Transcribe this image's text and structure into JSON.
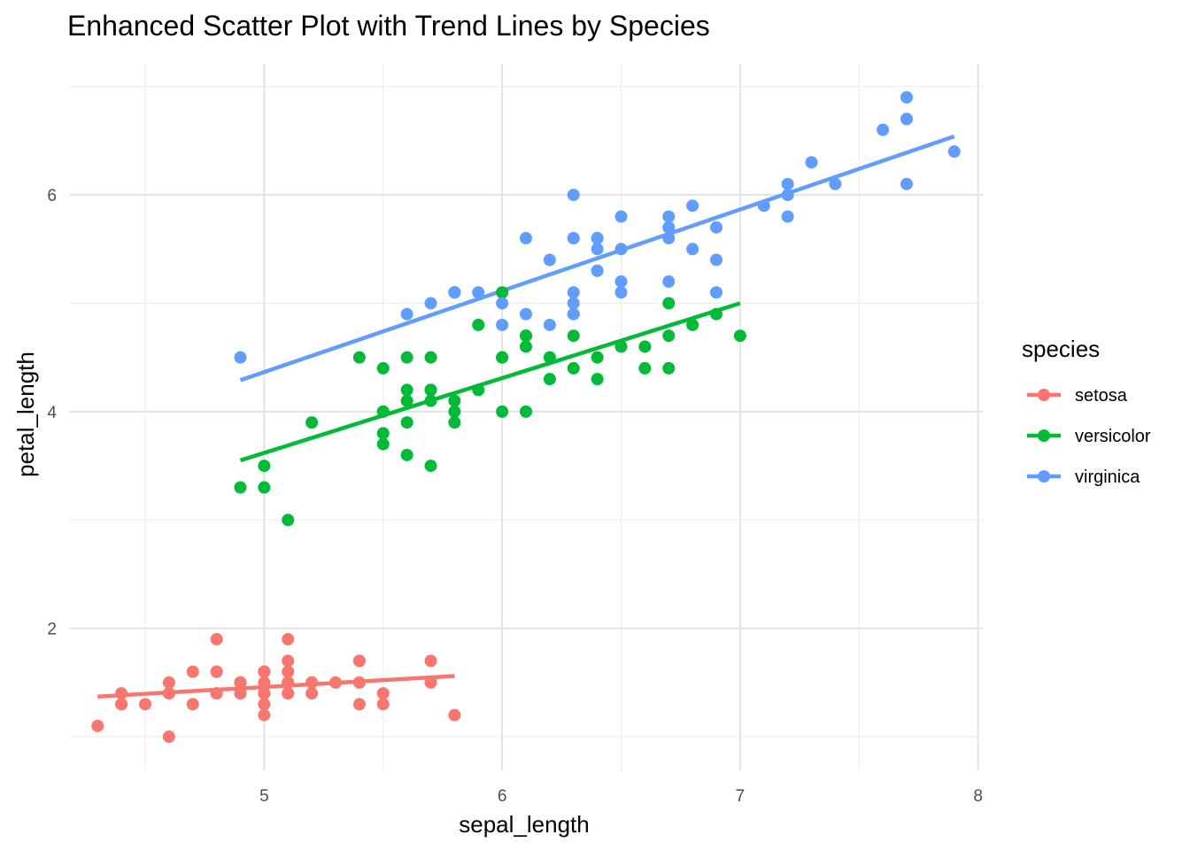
{
  "chart_data": {
    "type": "scatter",
    "title": "Enhanced Scatter Plot with Trend Lines by Species",
    "xlabel": "sepal_length",
    "ylabel": "petal_length",
    "xlim": [
      4.18,
      8.02
    ],
    "ylim": [
      0.69,
      7.21
    ],
    "x_ticks": [
      5,
      6,
      7,
      8
    ],
    "y_ticks": [
      2,
      4,
      6
    ],
    "grid": true,
    "legend": {
      "title": "species",
      "position": "right"
    },
    "series": [
      {
        "name": "setosa",
        "color": "#F8766D",
        "points": [
          [
            5.1,
            1.4
          ],
          [
            4.9,
            1.4
          ],
          [
            4.7,
            1.3
          ],
          [
            4.6,
            1.5
          ],
          [
            5.0,
            1.4
          ],
          [
            5.4,
            1.7
          ],
          [
            4.6,
            1.4
          ],
          [
            5.0,
            1.5
          ],
          [
            4.4,
            1.4
          ],
          [
            4.9,
            1.5
          ],
          [
            5.4,
            1.5
          ],
          [
            4.8,
            1.6
          ],
          [
            4.8,
            1.4
          ],
          [
            4.3,
            1.1
          ],
          [
            5.8,
            1.2
          ],
          [
            5.7,
            1.5
          ],
          [
            5.4,
            1.3
          ],
          [
            5.1,
            1.4
          ],
          [
            5.7,
            1.7
          ],
          [
            5.1,
            1.5
          ],
          [
            5.4,
            1.7
          ],
          [
            5.1,
            1.5
          ],
          [
            4.6,
            1.0
          ],
          [
            5.1,
            1.7
          ],
          [
            4.8,
            1.9
          ],
          [
            5.0,
            1.6
          ],
          [
            5.0,
            1.6
          ],
          [
            5.2,
            1.5
          ],
          [
            5.2,
            1.4
          ],
          [
            4.7,
            1.6
          ],
          [
            4.8,
            1.6
          ],
          [
            5.4,
            1.5
          ],
          [
            5.2,
            1.5
          ],
          [
            5.5,
            1.4
          ],
          [
            4.9,
            1.5
          ],
          [
            5.0,
            1.2
          ],
          [
            5.5,
            1.3
          ],
          [
            4.9,
            1.4
          ],
          [
            4.4,
            1.3
          ],
          [
            5.1,
            1.5
          ],
          [
            5.0,
            1.3
          ],
          [
            4.5,
            1.3
          ],
          [
            4.4,
            1.3
          ],
          [
            5.0,
            1.6
          ],
          [
            5.1,
            1.9
          ],
          [
            4.8,
            1.4
          ],
          [
            5.1,
            1.6
          ],
          [
            4.6,
            1.4
          ],
          [
            5.3,
            1.5
          ],
          [
            5.0,
            1.4
          ]
        ],
        "trend": [
          [
            4.3,
            1.37
          ],
          [
            5.8,
            1.56
          ]
        ]
      },
      {
        "name": "versicolor",
        "color": "#00BA38",
        "points": [
          [
            7.0,
            4.7
          ],
          [
            6.4,
            4.5
          ],
          [
            6.9,
            4.9
          ],
          [
            5.5,
            4.0
          ],
          [
            6.5,
            4.6
          ],
          [
            5.7,
            4.5
          ],
          [
            6.3,
            4.7
          ],
          [
            4.9,
            3.3
          ],
          [
            6.6,
            4.6
          ],
          [
            5.2,
            3.9
          ],
          [
            5.0,
            3.5
          ],
          [
            5.9,
            4.2
          ],
          [
            6.0,
            4.0
          ],
          [
            6.1,
            4.7
          ],
          [
            5.6,
            3.6
          ],
          [
            6.7,
            4.4
          ],
          [
            5.6,
            4.5
          ],
          [
            5.8,
            4.1
          ],
          [
            6.2,
            4.5
          ],
          [
            5.6,
            3.9
          ],
          [
            5.9,
            4.8
          ],
          [
            6.1,
            4.0
          ],
          [
            6.3,
            4.9
          ],
          [
            6.1,
            4.7
          ],
          [
            6.4,
            4.3
          ],
          [
            6.6,
            4.4
          ],
          [
            6.8,
            4.8
          ],
          [
            6.7,
            5.0
          ],
          [
            6.0,
            4.5
          ],
          [
            5.7,
            3.5
          ],
          [
            5.5,
            3.8
          ],
          [
            5.5,
            3.7
          ],
          [
            5.8,
            3.9
          ],
          [
            6.0,
            5.1
          ],
          [
            5.4,
            4.5
          ],
          [
            6.0,
            4.5
          ],
          [
            6.7,
            4.7
          ],
          [
            6.3,
            4.4
          ],
          [
            5.6,
            4.1
          ],
          [
            5.5,
            4.0
          ],
          [
            5.5,
            4.4
          ],
          [
            6.1,
            4.6
          ],
          [
            5.8,
            4.0
          ],
          [
            5.0,
            3.3
          ],
          [
            5.6,
            4.2
          ],
          [
            5.7,
            4.2
          ],
          [
            5.7,
            4.2
          ],
          [
            6.2,
            4.3
          ],
          [
            5.1,
            3.0
          ],
          [
            5.7,
            4.1
          ]
        ],
        "trend": [
          [
            4.9,
            3.55
          ],
          [
            7.0,
            5.0
          ]
        ]
      },
      {
        "name": "virginica",
        "color": "#619CFF",
        "points": [
          [
            6.3,
            6.0
          ],
          [
            5.8,
            5.1
          ],
          [
            7.1,
            5.9
          ],
          [
            6.3,
            5.6
          ],
          [
            6.5,
            5.8
          ],
          [
            7.6,
            6.6
          ],
          [
            4.9,
            4.5
          ],
          [
            7.3,
            6.3
          ],
          [
            6.7,
            5.8
          ],
          [
            7.2,
            6.1
          ],
          [
            6.5,
            5.1
          ],
          [
            6.4,
            5.3
          ],
          [
            6.8,
            5.5
          ],
          [
            5.7,
            5.0
          ],
          [
            5.8,
            5.1
          ],
          [
            6.4,
            5.3
          ],
          [
            6.5,
            5.5
          ],
          [
            7.7,
            6.7
          ],
          [
            7.7,
            6.9
          ],
          [
            6.0,
            5.0
          ],
          [
            6.9,
            5.7
          ],
          [
            5.6,
            4.9
          ],
          [
            7.7,
            6.7
          ],
          [
            6.3,
            4.9
          ],
          [
            6.7,
            5.7
          ],
          [
            7.2,
            6.0
          ],
          [
            6.2,
            4.8
          ],
          [
            6.1,
            4.9
          ],
          [
            6.4,
            5.6
          ],
          [
            7.2,
            5.8
          ],
          [
            7.4,
            6.1
          ],
          [
            7.9,
            6.4
          ],
          [
            6.4,
            5.6
          ],
          [
            6.3,
            5.1
          ],
          [
            6.1,
            5.6
          ],
          [
            7.7,
            6.1
          ],
          [
            6.3,
            5.6
          ],
          [
            6.4,
            5.5
          ],
          [
            6.0,
            4.8
          ],
          [
            6.9,
            5.4
          ],
          [
            6.7,
            5.6
          ],
          [
            6.9,
            5.1
          ],
          [
            5.8,
            5.1
          ],
          [
            6.8,
            5.9
          ],
          [
            6.7,
            5.7
          ],
          [
            6.7,
            5.2
          ],
          [
            6.3,
            5.0
          ],
          [
            6.5,
            5.2
          ],
          [
            6.2,
            5.4
          ],
          [
            5.9,
            5.1
          ]
        ],
        "trend": [
          [
            4.9,
            4.29
          ],
          [
            7.9,
            6.54
          ]
        ]
      }
    ]
  }
}
